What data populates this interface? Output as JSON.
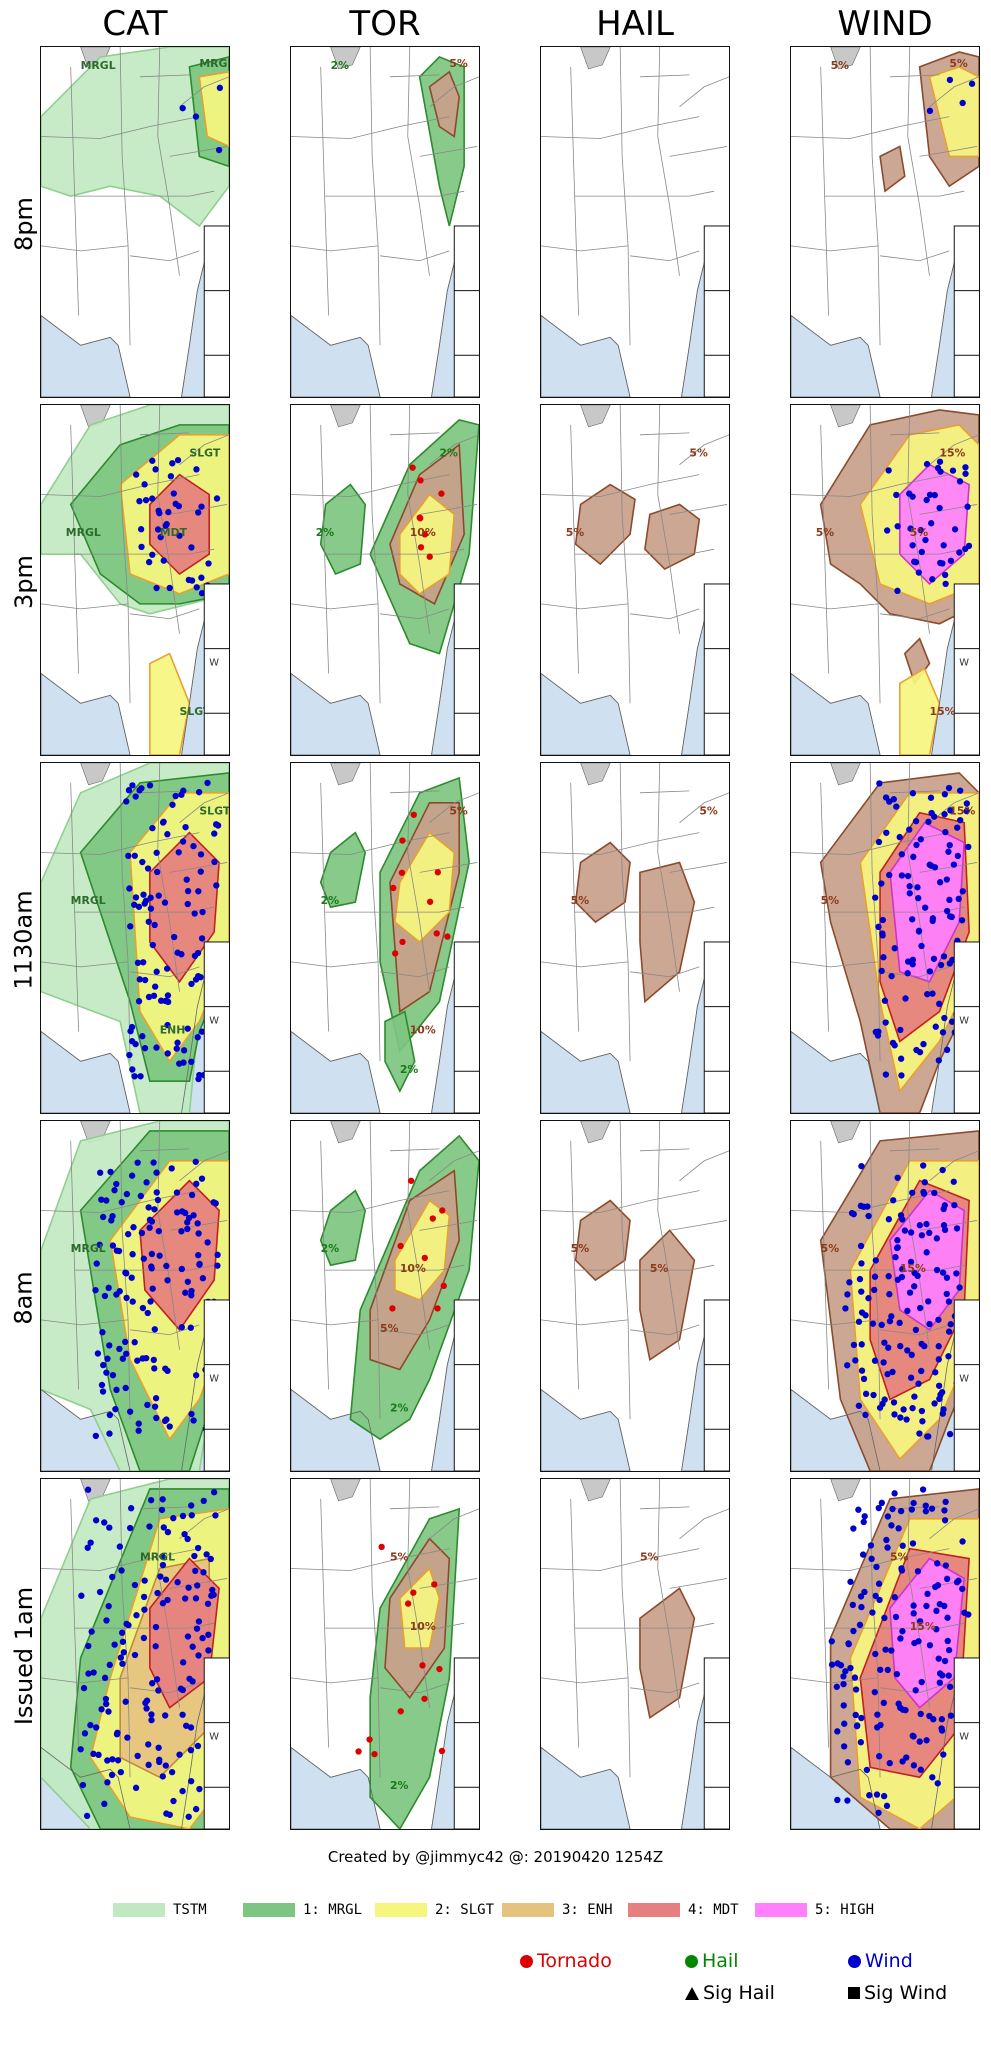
{
  "columns": [
    "CAT",
    "TOR",
    "HAIL",
    "WIND"
  ],
  "rows": [
    "8pm",
    "3pm",
    "1130am",
    "8am",
    "Issued 1am"
  ],
  "credit": "Created by @jimmyc42 @: 20190420 1254Z",
  "colors": {
    "tstm": "#c1e9c1",
    "mrgl": "#7dc580",
    "slgt": "#f6f67f",
    "enh": "#e6c27f",
    "mdt": "#e67f7f",
    "high": "#ff80ff",
    "prob": "#c8a08a",
    "water": "#cfe0f0",
    "tornado": "#dd0000",
    "hail": "#008800",
    "wind": "#0000cc"
  },
  "legend": [
    {
      "label": "TSTM",
      "color": "#c1e9c1"
    },
    {
      "label": "1: MRGL",
      "color": "#7dc580"
    },
    {
      "label": "2: SLGT",
      "color": "#f6f67f"
    },
    {
      "label": "3: ENH",
      "color": "#e6c27f"
    },
    {
      "label": "4: MDT",
      "color": "#e67f7f"
    },
    {
      "label": "5: HIGH",
      "color": "#ff80ff"
    }
  ],
  "reports": {
    "tornado": "Tornado",
    "hail": "Hail",
    "wind": "Wind",
    "sig_hail": "Sig Hail",
    "sig_wind": "Sig Wind"
  },
  "panel_labels": {
    "8pm": {
      "CAT": [
        "MRGL",
        "MRGL"
      ],
      "TOR": [
        "2%",
        "5%"
      ],
      "HAIL": [],
      "WIND": [
        "5%",
        "5%"
      ]
    },
    "3pm": {
      "CAT": [
        "MRGL",
        "SLGT",
        "MDT",
        "SLGT"
      ],
      "TOR": [
        "2%",
        "2%",
        "10%"
      ],
      "HAIL": [
        "5%",
        "5%"
      ],
      "WIND": [
        "5%",
        "15%",
        "5%",
        "15%"
      ]
    },
    "1130am": {
      "CAT": [
        "MRGL",
        "SLGT",
        "ENH"
      ],
      "TOR": [
        "2%",
        "5%",
        "10%",
        "2%"
      ],
      "HAIL": [
        "5%",
        "5%"
      ],
      "WIND": [
        "5%",
        "15%"
      ]
    },
    "8am": {
      "CAT": [
        "MRGL"
      ],
      "TOR": [
        "2%",
        "10%",
        "5%",
        "2%"
      ],
      "HAIL": [
        "5%",
        "5%"
      ],
      "WIND": [
        "5%",
        "15%"
      ]
    },
    "Issued 1am": {
      "CAT": [
        "MRGL"
      ],
      "TOR": [
        "5%",
        "10%",
        "2%"
      ],
      "HAIL": [
        "5%"
      ],
      "WIND": [
        "5%",
        "15%"
      ]
    }
  },
  "table_fragments": {
    "3pm": "W",
    "1130am": "W",
    "8am": "W",
    "Issued 1am": "W"
  }
}
